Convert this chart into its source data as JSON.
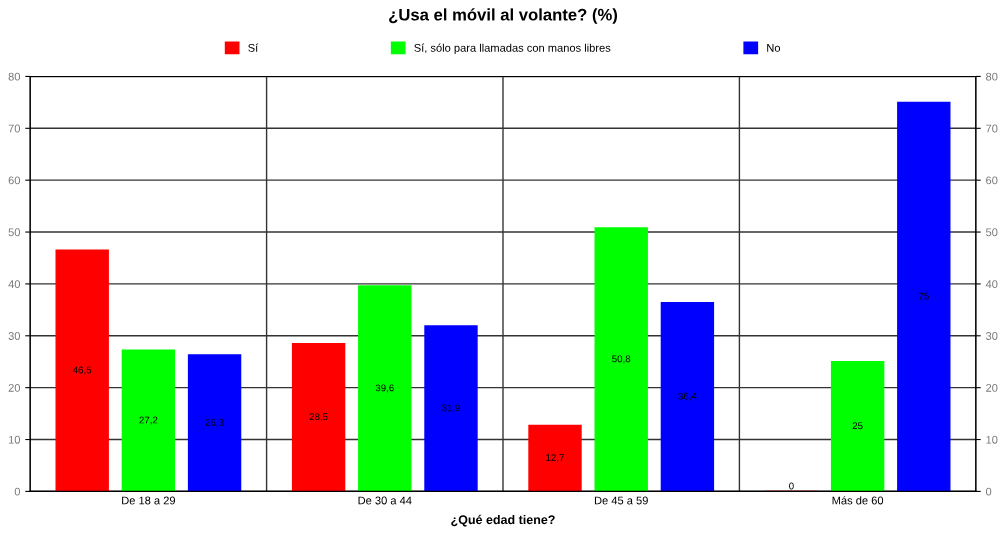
{
  "chart_data": {
    "type": "bar",
    "title": "¿Usa el móvil al volante? (%)",
    "xlabel": "¿Qué edad tiene?",
    "categories": [
      "De 18 a 29",
      "De 30 a 44",
      "De 45 a 59",
      "Más de 60"
    ],
    "series": [
      {
        "name": "Sí",
        "color": "#ff0000",
        "values": [
          46.5,
          28.5,
          12.7,
          0
        ],
        "value_labels": [
          "46,5",
          "28,5",
          "12,7",
          "0"
        ]
      },
      {
        "name": "Sí, sólo para llamadas con manos libres",
        "color": "#00ff00",
        "values": [
          27.2,
          39.6,
          50.8,
          25
        ],
        "value_labels": [
          "27,2",
          "39,6",
          "50,8",
          "25"
        ]
      },
      {
        "name": "No",
        "color": "#0000ff",
        "values": [
          26.3,
          31.9,
          36.4,
          75
        ],
        "value_labels": [
          "26,3",
          "31,9",
          "36,4",
          "75"
        ]
      }
    ],
    "ylim": [
      0,
      80
    ],
    "yticks": [
      0,
      10,
      20,
      30,
      40,
      50,
      60,
      70,
      80
    ],
    "y2lim": [
      0,
      80
    ],
    "y2ticks": [
      0,
      10,
      20,
      30,
      40,
      50,
      60,
      70,
      80
    ],
    "grid": true,
    "legend": "top"
  }
}
